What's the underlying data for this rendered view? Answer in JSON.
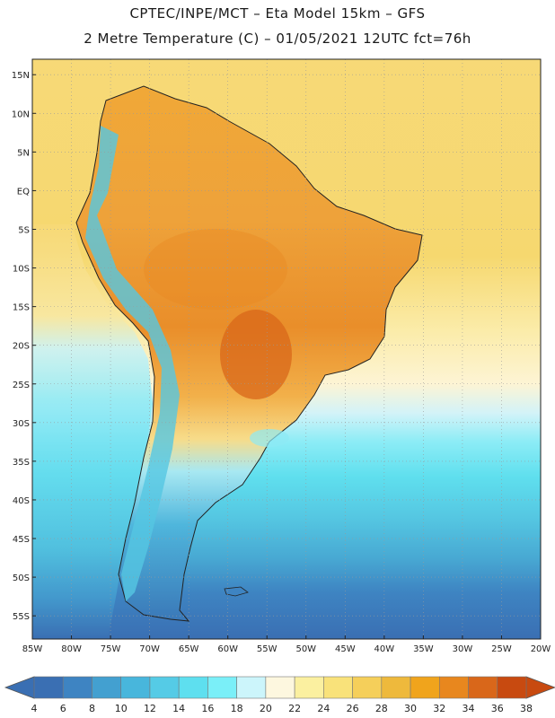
{
  "header": {
    "line1": "CPTEC/INPE/MCT –  Eta Model 15km – GFS",
    "line2": "2 Metre Temperature (C) – 01/05/2021 12UTC fct=76h"
  },
  "map": {
    "lon_range": [
      -85,
      -20
    ],
    "lat_range": [
      -58,
      17
    ],
    "lat_labels": [
      "15N",
      "10N",
      "5N",
      "EQ",
      "5S",
      "10S",
      "15S",
      "20S",
      "25S",
      "30S",
      "35S",
      "40S",
      "45S",
      "50S",
      "55S"
    ],
    "lat_values": [
      15,
      10,
      5,
      0,
      -5,
      -10,
      -15,
      -20,
      -25,
      -30,
      -35,
      -40,
      -45,
      -50,
      -55
    ],
    "lon_labels": [
      "85W",
      "80W",
      "75W",
      "70W",
      "65W",
      "60W",
      "55W",
      "50W",
      "45W",
      "40W",
      "35W",
      "30W",
      "25W",
      "20W"
    ],
    "lon_values": [
      -85,
      -80,
      -75,
      -70,
      -65,
      -60,
      -55,
      -50,
      -45,
      -40,
      -35,
      -30,
      -25,
      -20
    ]
  },
  "colorbar": {
    "values": [
      "4",
      "6",
      "8",
      "10",
      "12",
      "14",
      "16",
      "18",
      "20",
      "22",
      "24",
      "26",
      "28",
      "30",
      "32",
      "34",
      "36",
      "38"
    ],
    "colors": [
      "#3a6fb3",
      "#3e84c2",
      "#43a0d0",
      "#48b6dc",
      "#55cbe6",
      "#5edfef",
      "#7aeff8",
      "#ccf5fb",
      "#fdf7df",
      "#fbf0a0",
      "#f9e27a",
      "#f5cf5a",
      "#eeb93c",
      "#f0a41c",
      "#e8871e",
      "#d9671a",
      "#c84a10"
    ],
    "low_color": "#3a6fb3",
    "high_color": "#c84a10"
  },
  "colors": {
    "land_border": "#222222",
    "ocean_tropical": "#f7d977",
    "grid": "#9a9a9a"
  }
}
